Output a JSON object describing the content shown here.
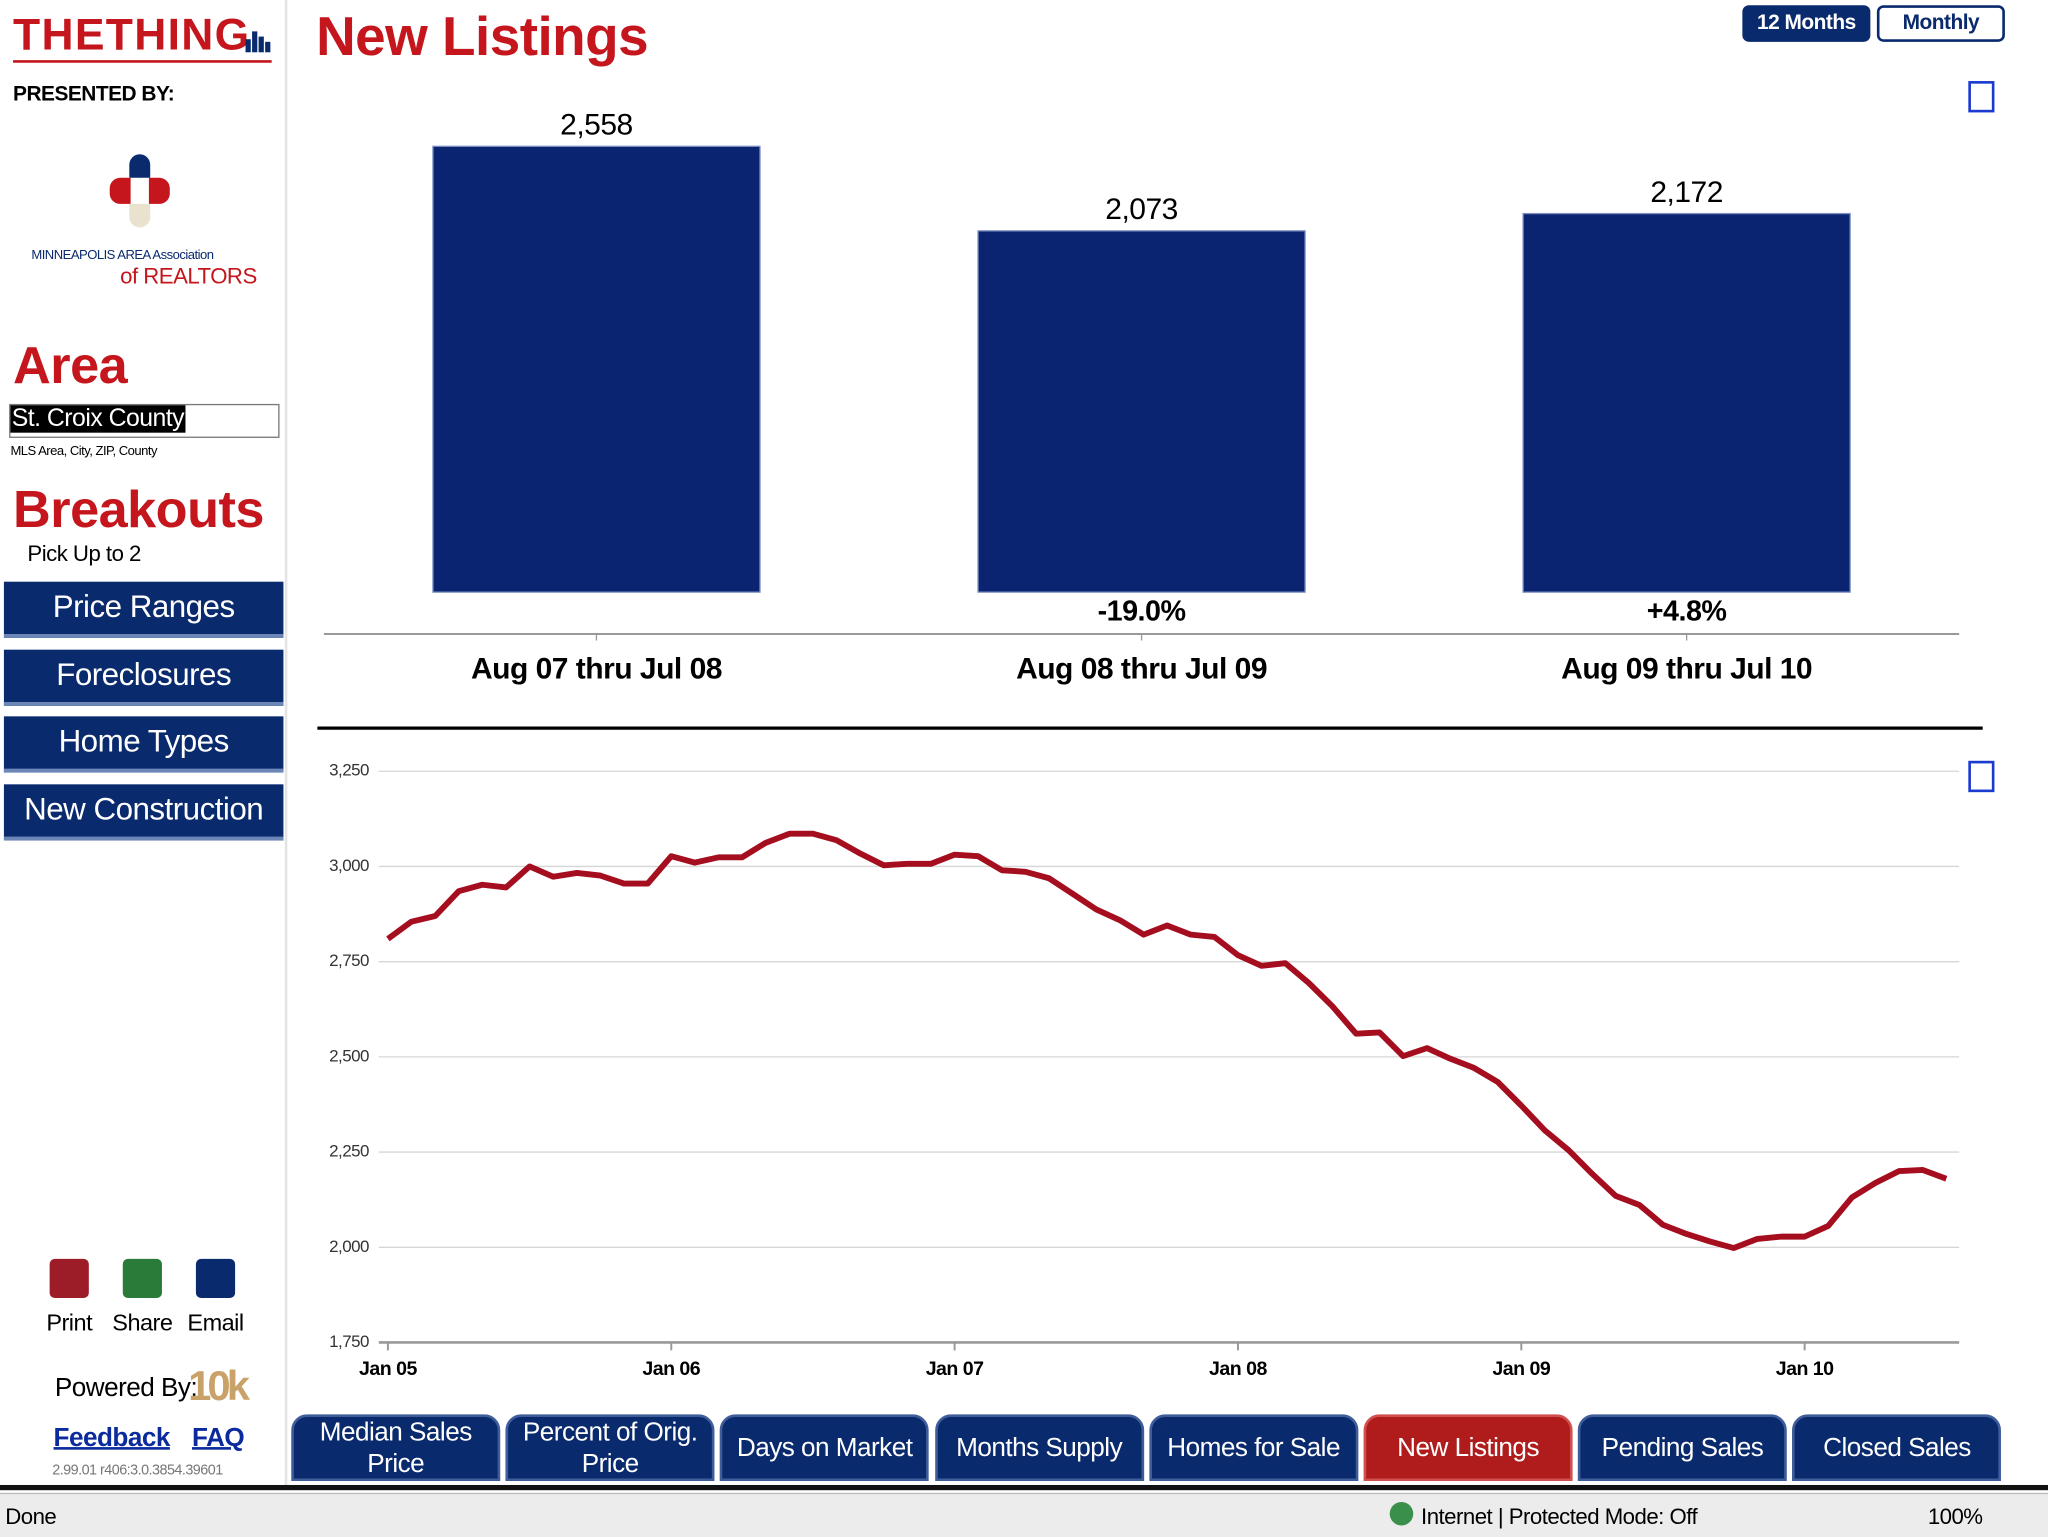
{
  "header": {
    "brand": "THETHING",
    "presented_by": "PRESENTED BY:",
    "sponsor_line1": "MINNEAPOLIS AREA Association",
    "sponsor_line2": "of REALTORS",
    "title": "New Listings"
  },
  "controls": {
    "period": "12 Months",
    "interval": "Monthly"
  },
  "sidebar": {
    "area_heading": "Area",
    "area_value": "St. Croix County",
    "area_hint": "MLS Area, City, ZIP, County",
    "breakouts_heading": "Breakouts",
    "breakouts_hint": "Pick Up to 2",
    "breakouts": [
      "Price Ranges",
      "Foreclosures",
      "Home Types",
      "New Construction"
    ],
    "actions": [
      "Print",
      "Share",
      "Email"
    ],
    "powered_by": "Powered By:",
    "powered_brand": "10k",
    "links": [
      "Feedback",
      "FAQ"
    ],
    "version": "2.99.01 r406:3.0.3854.39601"
  },
  "chart_data": [
    {
      "type": "bar",
      "categories": [
        "Aug 07 thru Jul 08",
        "Aug 08 thru Jul 09",
        "Aug 09 thru Jul 10"
      ],
      "values": [
        2558,
        2073,
        2172
      ],
      "value_labels": [
        "2,558",
        "2,073",
        "2,172"
      ],
      "annotations": [
        null,
        "-19.0%",
        "+4.8%"
      ],
      "color": "#0a2472",
      "ylim": [
        0,
        2700
      ]
    },
    {
      "type": "line",
      "x": [
        2005,
        2005.083,
        2005.167,
        2005.25,
        2005.333,
        2005.417,
        2005.5,
        2005.583,
        2005.667,
        2005.75,
        2005.833,
        2005.917,
        2006,
        2006.083,
        2006.167,
        2006.25,
        2006.333,
        2006.417,
        2006.5,
        2006.583,
        2006.667,
        2006.75,
        2006.833,
        2006.917,
        2007,
        2007.083,
        2007.167,
        2007.25,
        2007.333,
        2007.417,
        2007.5,
        2007.583,
        2007.667,
        2007.75,
        2007.833,
        2007.917,
        2008,
        2008.083,
        2008.167,
        2008.25,
        2008.333,
        2008.417,
        2008.5,
        2008.583,
        2008.667,
        2008.75,
        2008.833,
        2008.917,
        2009,
        2009.083,
        2009.167,
        2009.25,
        2009.333,
        2009.417,
        2009.5,
        2009.583,
        2009.667,
        2009.75,
        2009.833,
        2009.917,
        2010,
        2010.083,
        2010.167,
        2010.25,
        2010.333,
        2010.417,
        2010.5
      ],
      "series": [
        {
          "color": "#a50e1e",
          "values": [
            2810,
            2855,
            2870,
            2935,
            2952,
            2945,
            3000,
            2973,
            2983,
            2976,
            2955,
            2955,
            3027,
            3010,
            3024,
            3024,
            3062,
            3086,
            3086,
            3069,
            3034,
            3003,
            3007,
            3007,
            3031,
            3027,
            2990,
            2986,
            2969,
            2928,
            2887,
            2859,
            2821,
            2845,
            2821,
            2815,
            2767,
            2739,
            2746,
            2694,
            2633,
            2561,
            2564,
            2502,
            2523,
            2495,
            2471,
            2434,
            2372,
            2307,
            2255,
            2193,
            2135,
            2111,
            2059,
            2035,
            2015,
            1998,
            2022,
            2028,
            2028,
            2056,
            2131,
            2169,
            2200,
            2203,
            2180
          ]
        }
      ],
      "xlim": [
        2005,
        2010.55
      ],
      "xticks": [
        {
          "value": 2005,
          "label": "Jan 05"
        },
        {
          "value": 2006,
          "label": "Jan 06"
        },
        {
          "value": 2007,
          "label": "Jan 07"
        },
        {
          "value": 2008,
          "label": "Jan 08"
        },
        {
          "value": 2009,
          "label": "Jan 09"
        },
        {
          "value": 2010,
          "label": "Jan 10"
        }
      ],
      "ylim": [
        1750,
        3250
      ],
      "yticks": [
        {
          "value": 1750,
          "label": "1,750"
        },
        {
          "value": 2000,
          "label": "2,000"
        },
        {
          "value": 2250,
          "label": "2,250"
        },
        {
          "value": 2500,
          "label": "2,500"
        },
        {
          "value": 2750,
          "label": "2,750"
        },
        {
          "value": 3000,
          "label": "3,000"
        },
        {
          "value": 3250,
          "label": "3,250"
        }
      ],
      "grid": true
    }
  ],
  "tabs": [
    "Median Sales Price",
    "Percent of Orig. Price",
    "Days on Market",
    "Months Supply",
    "Homes for Sale",
    "New Listings",
    "Pending Sales",
    "Closed Sales"
  ],
  "active_tab": 5,
  "status": {
    "left": "Done",
    "zone": "Internet | Protected Mode: Off",
    "zoom": "100%"
  }
}
